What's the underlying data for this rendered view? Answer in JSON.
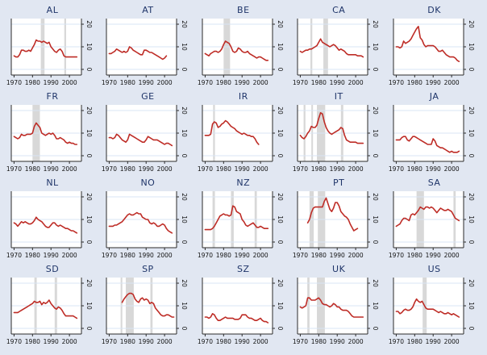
{
  "figure": {
    "background_color": "#e1e7f2",
    "plot_background_color": "#ffffff",
    "grid_color": "#d9e5f4",
    "axis_color": "#2b2b2b",
    "title_color": "#1f3569",
    "line_color": "#be2c26",
    "band_color": "#d8d8d8",
    "tick_label_color": "#111111"
  },
  "chart_data": {
    "type": "line",
    "title": "",
    "xlabel": "",
    "ylabel": "",
    "layout": {
      "rows": 4,
      "cols": 5,
      "legend": "none",
      "grid": "horizontal"
    },
    "x_ticks": [
      1970,
      1980,
      1990,
      2000
    ],
    "y_ticks": [
      0,
      10,
      20
    ],
    "xlim": [
      1968.5,
      2006.5
    ],
    "ylim": [
      -2.5,
      22.5
    ],
    "panels": [
      {
        "title": "AL",
        "start_year": 1970,
        "values": [
          6,
          5.5,
          5.5,
          6.5,
          8.5,
          8.5,
          8,
          8,
          8.5,
          8,
          9.5,
          11,
          13,
          12.5,
          12.5,
          12,
          12.5,
          12,
          11.5,
          12,
          10,
          9,
          8,
          7.5,
          8.5,
          9,
          8,
          6,
          5.5,
          5.5,
          5.5,
          5.5,
          5.5,
          5.5,
          5.5
        ],
        "bands": [
          [
            1984.5,
            1986.5
          ],
          [
            1997.2,
            1998.2
          ]
        ]
      },
      {
        "title": "AT",
        "start_year": 1970,
        "values": [
          7,
          7,
          7.5,
          8,
          9,
          8.5,
          8,
          7.5,
          8,
          7.5,
          8,
          10,
          9.5,
          8.5,
          8,
          7.5,
          7,
          6.5,
          6.5,
          8.5,
          8.5,
          8,
          7.5,
          7.5,
          7,
          6.5,
          6,
          5.5,
          5,
          4.5,
          5,
          6
        ],
        "bands": []
      },
      {
        "title": "BE",
        "start_year": 1970,
        "values": [
          7,
          6.5,
          6,
          7,
          7.5,
          8,
          8,
          7.5,
          8,
          9,
          11,
          12.5,
          12,
          11.5,
          10,
          8,
          7.5,
          8,
          9.5,
          9,
          8,
          7.5,
          7.5,
          8,
          7,
          6.5,
          6,
          5.5,
          5,
          5.5,
          5.5,
          5,
          4.5,
          4,
          4
        ],
        "bands": [
          [
            1980,
            1983.5
          ]
        ]
      },
      {
        "title": "CA",
        "start_year": 1970,
        "values": [
          8,
          7.5,
          8,
          8.5,
          8.5,
          9,
          9,
          9.5,
          10,
          10.5,
          12,
          13.5,
          12,
          11.5,
          11,
          10.5,
          10,
          10.5,
          11,
          10.5,
          9.5,
          8.5,
          9,
          8.5,
          8,
          7,
          6.5,
          6.5,
          6.5,
          6.5,
          6.5,
          6,
          6,
          6,
          5.5
        ],
        "bands": [
          [
            1975.5,
            1976.5
          ],
          [
            1982.5,
            1985
          ]
        ]
      },
      {
        "title": "DK",
        "start_year": 1970,
        "values": [
          10,
          10,
          9.5,
          10,
          12.5,
          11.5,
          12,
          12.5,
          13.5,
          15,
          16.5,
          18,
          19,
          14,
          13,
          11,
          10,
          10.5,
          10.5,
          10.5,
          10.5,
          10,
          9,
          8,
          8,
          8.5,
          7.5,
          6.5,
          6,
          5.5,
          5.5,
          5.5,
          5,
          4,
          3.5
        ],
        "bands": []
      },
      {
        "title": "FR",
        "start_year": 1970,
        "values": [
          8.5,
          8,
          7.5,
          8,
          9.5,
          9,
          9,
          9.5,
          9.5,
          9.5,
          10,
          13,
          14.5,
          13.5,
          12.5,
          10,
          9.5,
          9,
          9.5,
          10,
          9.5,
          10,
          9,
          7.5,
          7.5,
          8,
          7.5,
          7,
          6,
          5.5,
          6,
          5.5,
          5.5,
          5,
          5
        ],
        "bands": [
          [
            1980,
            1984
          ]
        ]
      },
      {
        "title": "GE",
        "start_year": 1970,
        "values": [
          8,
          8,
          7.5,
          8,
          9.5,
          9,
          8,
          7,
          6.5,
          6,
          7,
          9.5,
          9,
          8.5,
          8,
          7.5,
          7,
          6.5,
          6,
          6,
          7,
          8.5,
          8,
          7.5,
          7,
          7,
          7,
          6.5,
          6,
          5.5,
          5,
          5.5,
          5.5,
          5,
          4.5
        ],
        "bands": []
      },
      {
        "title": "IR",
        "start_year": 1970,
        "values": [
          9,
          9,
          9,
          9.5,
          14,
          15,
          14.5,
          12.5,
          13,
          14,
          14.5,
          15.5,
          15,
          14,
          13,
          12.5,
          12,
          11,
          10.5,
          10,
          9.5,
          10,
          9.5,
          9,
          9,
          8.5,
          8.5,
          7.5,
          6,
          5
        ],
        "bands": [
          [
            1974.3,
            1975.3
          ]
        ]
      },
      {
        "title": "IT",
        "start_year": 1970,
        "values": [
          9,
          8,
          7.5,
          8.5,
          10,
          11,
          13,
          12.5,
          12.5,
          13.5,
          16.5,
          19,
          18.5,
          15,
          12.5,
          11,
          10,
          9.5,
          10,
          10.5,
          11,
          11.5,
          12.5,
          12,
          9,
          7,
          6.5,
          6,
          6,
          6,
          6,
          5.5,
          5.5,
          5.5,
          5.5
        ],
        "bands": [
          [
            1971.8,
            1972.8
          ],
          [
            1976,
            1976.8
          ],
          [
            1979,
            1983.5
          ],
          [
            1992,
            1993.3
          ]
        ]
      },
      {
        "title": "JA",
        "start_year": 1970,
        "values": [
          7,
          7,
          7,
          8,
          8.5,
          8.5,
          7,
          6.5,
          7.5,
          8.5,
          8.5,
          8,
          7.5,
          7,
          6.5,
          6,
          5.5,
          5,
          5,
          5,
          7.5,
          6.5,
          4.5,
          4,
          3.5,
          3.5,
          3,
          2.5,
          2,
          1.5,
          2,
          1.5,
          1.5,
          1.5,
          2
        ],
        "bands": []
      },
      {
        "title": "NL",
        "start_year": 1970,
        "values": [
          8.5,
          8,
          7,
          8,
          9,
          8.5,
          9,
          8.5,
          8,
          8,
          8.5,
          9.5,
          11,
          10,
          9.5,
          9,
          8,
          7,
          6.5,
          6.5,
          7.5,
          8.5,
          8.5,
          7.5,
          7,
          7.5,
          7,
          6.5,
          6,
          6,
          5.5,
          5,
          5,
          4.5,
          4
        ],
        "bands": []
      },
      {
        "title": "NO",
        "start_year": 1970,
        "values": [
          7,
          7,
          7,
          7.5,
          7.5,
          8,
          8.5,
          9,
          10,
          11,
          12,
          12.5,
          12,
          12,
          12.5,
          13,
          12.5,
          12.5,
          11,
          10.5,
          10,
          10,
          8.5,
          8,
          8.5,
          8,
          7,
          7,
          7.5,
          8,
          7.5,
          6,
          5,
          4.5,
          4
        ],
        "bands": []
      },
      {
        "title": "NZ",
        "start_year": 1970,
        "values": [
          5.5,
          5.5,
          5.5,
          5.5,
          6,
          7,
          8.5,
          10,
          11.5,
          12,
          12.5,
          12,
          12,
          11.5,
          12,
          16,
          15.5,
          13.5,
          13,
          12.5,
          10,
          9,
          7.5,
          7,
          7.5,
          8,
          8.5,
          7.5,
          6.5,
          6.5,
          7,
          6.5,
          6,
          6,
          6
        ],
        "bands": [
          [
            1974,
            1975.3
          ],
          [
            1984,
            1985.5
          ],
          [
            1996.8,
            1998
          ]
        ]
      },
      {
        "title": "PT",
        "start_year": 1974,
        "values": [
          8.5,
          10,
          13,
          15,
          15.5,
          15.5,
          15.5,
          15.5,
          15.5,
          18,
          19.5,
          17,
          14.5,
          13.5,
          15,
          17.5,
          17.5,
          16,
          13.5,
          12.5,
          11.5,
          11,
          10,
          8,
          6.5,
          5,
          5.5,
          6
        ],
        "bands": [
          [
            1975,
            1977.3
          ],
          [
            1979.5,
            1983.5
          ]
        ]
      },
      {
        "title": "SA",
        "start_year": 1970,
        "values": [
          7,
          7.5,
          8,
          9.5,
          10.5,
          10.5,
          10,
          9.5,
          12,
          12.5,
          12,
          13,
          14,
          15.5,
          15,
          14.5,
          15.5,
          15.5,
          15,
          15.5,
          15,
          14,
          13,
          14,
          15,
          14.5,
          14,
          14,
          14.5,
          14,
          13.5,
          12,
          10.5,
          10,
          9.5
        ],
        "bands": [
          [
            1981,
            1985
          ],
          [
            2001,
            2002.2
          ]
        ]
      },
      {
        "title": "SD",
        "start_year": 1970,
        "values": [
          7,
          7,
          7,
          7.5,
          8,
          8.5,
          9,
          9.5,
          10,
          10.5,
          11,
          12,
          11.5,
          11.5,
          12,
          10.5,
          11.5,
          11,
          11.5,
          12.5,
          11,
          10,
          9,
          8.5,
          9.5,
          9,
          8,
          6.5,
          5.5,
          5.5,
          5.5,
          5.5,
          5.5,
          5,
          4.5
        ],
        "bands": [
          [
            1981,
            1982.3
          ],
          [
            1992,
            1993.3
          ]
        ]
      },
      {
        "title": "SP",
        "start_year": 1977,
        "values": [
          11.5,
          13,
          14,
          15,
          15.5,
          15.5,
          15,
          13,
          12,
          11.5,
          13,
          13.5,
          12.5,
          13,
          12.5,
          11,
          11.5,
          11,
          9,
          8,
          7,
          6,
          5.5,
          5.5,
          6,
          6,
          5.5,
          5,
          5
        ],
        "bands": [
          [
            1976.2,
            1977.1
          ],
          [
            1979,
            1983.3
          ],
          [
            1992.3,
            1993.5
          ]
        ]
      },
      {
        "title": "SZ",
        "start_year": 1970,
        "values": [
          5,
          5,
          4.5,
          5,
          6.5,
          6,
          4.5,
          3.5,
          3.5,
          4,
          4.5,
          5,
          4.5,
          4.5,
          4.5,
          4.5,
          4,
          4,
          4,
          4.5,
          6,
          6,
          6,
          5,
          4.5,
          4.5,
          4,
          3.5,
          3.5,
          4,
          4.5,
          3.5,
          3,
          3,
          2.5
        ],
        "bands": []
      },
      {
        "title": "UK",
        "start_year": 1970,
        "values": [
          9.5,
          9,
          9.5,
          10,
          13.5,
          13.5,
          12.5,
          12.5,
          12.5,
          13,
          13.5,
          12.5,
          11,
          10.5,
          10.5,
          10,
          9.5,
          10,
          11,
          10.5,
          9.5,
          9.5,
          8.5,
          8,
          8,
          8,
          7.5,
          6.5,
          5.5,
          5,
          5,
          5,
          5,
          5,
          5
        ],
        "bands": [
          [
            1973.8,
            1975
          ],
          [
            1979,
            1983.3
          ]
        ]
      },
      {
        "title": "US",
        "start_year": 1970,
        "values": [
          7.5,
          7.5,
          6.5,
          7,
          8,
          8.5,
          8,
          8,
          8.5,
          9.5,
          11.5,
          13,
          12,
          11.5,
          12,
          10.5,
          9,
          8.5,
          8.5,
          8.5,
          8.5,
          8,
          7.5,
          7,
          7.5,
          7,
          6.5,
          6.5,
          7,
          6.5,
          6,
          6.5,
          6,
          5.5,
          5
        ],
        "bands": [
          [
            1984.3,
            1986.5
          ]
        ]
      }
    ]
  }
}
